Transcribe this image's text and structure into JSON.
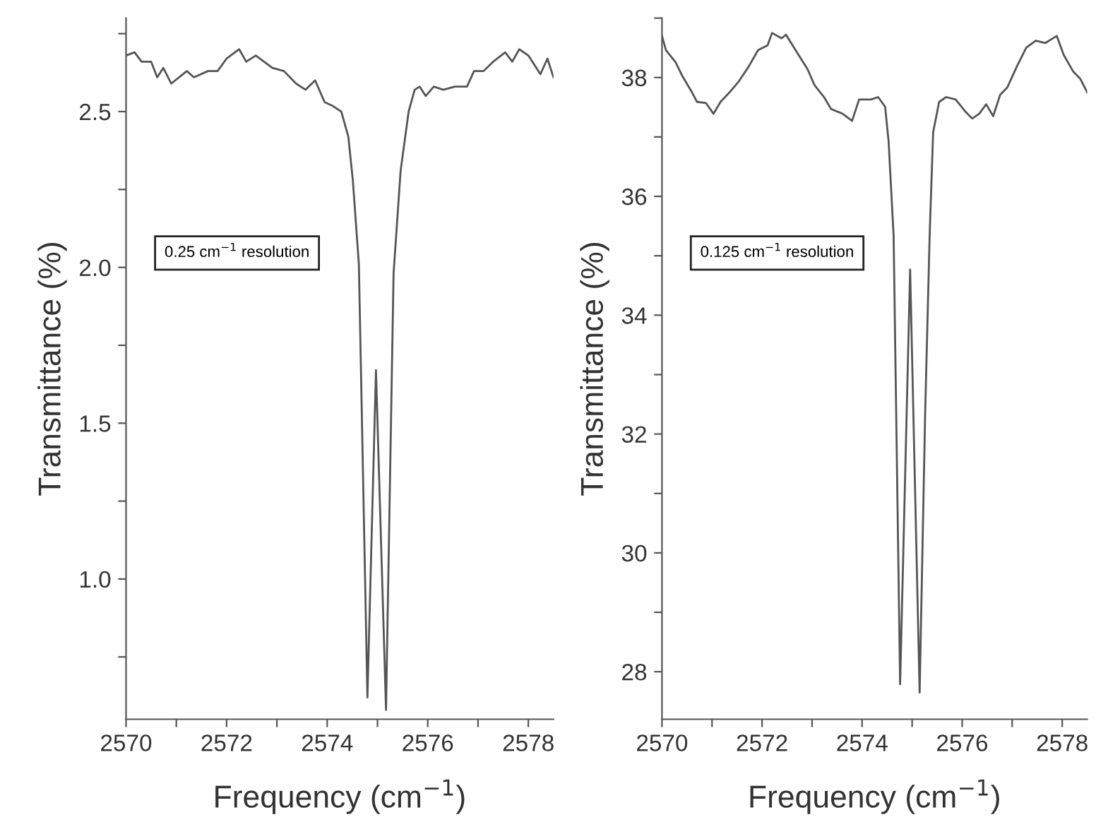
{
  "chart_data": [
    {
      "type": "line",
      "xlabel": "Frequency (cm$^{−1}$)",
      "ylabel": "Transmittance (%)",
      "annotations": [
        "0.25 cm$^{−1}$ resolution"
      ],
      "xlim": [
        2570,
        2578.5
      ],
      "xticks": [
        2570,
        {
          "value": 2571,
          "label": null
        },
        2572,
        {
          "value": 2573,
          "label": null
        },
        2574,
        {
          "value": 2575,
          "label": null
        },
        2576,
        {
          "value": 2577,
          "label": null
        },
        2578
      ],
      "ylim": [
        0.55,
        2.8
      ],
      "yticks": [
        {
          "value": 0.75,
          "label": null
        },
        {
          "value": 1.0,
          "label": "1.0"
        },
        {
          "value": 1.25,
          "label": null
        },
        1.5,
        {
          "value": 1.75,
          "label": null
        },
        {
          "value": 2.0,
          "label": "2.0"
        },
        {
          "value": 2.25,
          "label": null
        },
        2.5,
        {
          "value": 2.75,
          "label": null
        }
      ],
      "grid": false,
      "legend": false,
      "series": [
        {
          "color": "#555555",
          "x": [
            2570.0,
            2570.17,
            2570.31,
            2570.5,
            2570.62,
            2570.74,
            2570.9,
            2571.21,
            2571.35,
            2571.63,
            2571.82,
            2572.0,
            2572.25,
            2572.39,
            2572.58,
            2572.91,
            2573.14,
            2573.38,
            2573.57,
            2573.76,
            2573.95,
            2574.09,
            2574.28,
            2574.42,
            2574.51,
            2574.63,
            2574.8,
            2574.97,
            2575.17,
            2575.32,
            2575.46,
            2575.62,
            2575.74,
            2575.84,
            2575.96,
            2576.12,
            2576.31,
            2576.54,
            2576.78,
            2576.92,
            2577.11,
            2577.3,
            2577.54,
            2577.68,
            2577.82,
            2578.0,
            2578.24,
            2578.38,
            2578.5
          ],
          "values": [
            2.68,
            2.69,
            2.66,
            2.66,
            2.61,
            2.64,
            2.59,
            2.63,
            2.61,
            2.63,
            2.63,
            2.67,
            2.7,
            2.66,
            2.68,
            2.64,
            2.63,
            2.59,
            2.57,
            2.6,
            2.53,
            2.52,
            2.5,
            2.42,
            2.28,
            2.01,
            0.62,
            1.67,
            0.58,
            1.98,
            2.31,
            2.5,
            2.57,
            2.58,
            2.55,
            2.58,
            2.57,
            2.58,
            2.58,
            2.63,
            2.63,
            2.66,
            2.69,
            2.66,
            2.7,
            2.68,
            2.62,
            2.67,
            2.61
          ]
        }
      ]
    },
    {
      "type": "line",
      "xlabel": "Frequency (cm$^{−1}$)",
      "ylabel": "Transmittance (%)",
      "annotations": [
        "0.125 cm$^{−1}$ resolution"
      ],
      "xlim": [
        2570,
        2578.5
      ],
      "xticks": [
        2570,
        {
          "value": 2571,
          "label": null
        },
        2572,
        {
          "value": 2573,
          "label": null
        },
        2574,
        {
          "value": 2575,
          "label": null
        },
        2576,
        {
          "value": 2577,
          "label": null
        },
        2578
      ],
      "ylim": [
        27.2,
        39
      ],
      "yticks": [
        28,
        {
          "value": 29,
          "label": null
        },
        30,
        {
          "value": 31,
          "label": null
        },
        32,
        {
          "value": 33,
          "label": null
        },
        34,
        {
          "value": 35,
          "label": null
        },
        36,
        {
          "value": 37,
          "label": null
        },
        38,
        {
          "value": 39,
          "label": null
        }
      ],
      "grid": false,
      "legend": false,
      "series": [
        {
          "color": "#555555",
          "x": [
            2570.0,
            2570.08,
            2570.27,
            2570.41,
            2570.6,
            2570.7,
            2570.88,
            2571.03,
            2571.17,
            2571.35,
            2571.54,
            2571.73,
            2571.92,
            2572.11,
            2572.2,
            2572.39,
            2572.48,
            2572.67,
            2572.91,
            2573.05,
            2573.24,
            2573.38,
            2573.61,
            2573.8,
            2573.94,
            2574.18,
            2574.32,
            2574.46,
            2574.53,
            2574.63,
            2574.76,
            2574.96,
            2575.15,
            2575.26,
            2575.35,
            2575.42,
            2575.54,
            2575.68,
            2575.87,
            2576.06,
            2576.2,
            2576.34,
            2576.48,
            2576.62,
            2576.76,
            2576.9,
            2577.09,
            2577.28,
            2577.47,
            2577.66,
            2577.89,
            2578.03,
            2578.22,
            2578.36,
            2578.5
          ],
          "values": [
            38.7,
            38.46,
            38.26,
            38.02,
            37.75,
            37.59,
            37.57,
            37.39,
            37.59,
            37.75,
            37.94,
            38.18,
            38.46,
            38.54,
            38.75,
            38.66,
            38.72,
            38.46,
            38.14,
            37.87,
            37.67,
            37.47,
            37.39,
            37.27,
            37.63,
            37.63,
            37.67,
            37.51,
            36.92,
            35.34,
            27.79,
            34.77,
            27.65,
            32.33,
            35.34,
            37.08,
            37.59,
            37.67,
            37.63,
            37.43,
            37.31,
            37.39,
            37.55,
            37.35,
            37.71,
            37.83,
            38.18,
            38.5,
            38.62,
            38.58,
            38.7,
            38.38,
            38.1,
            37.98,
            37.75
          ]
        }
      ]
    }
  ]
}
